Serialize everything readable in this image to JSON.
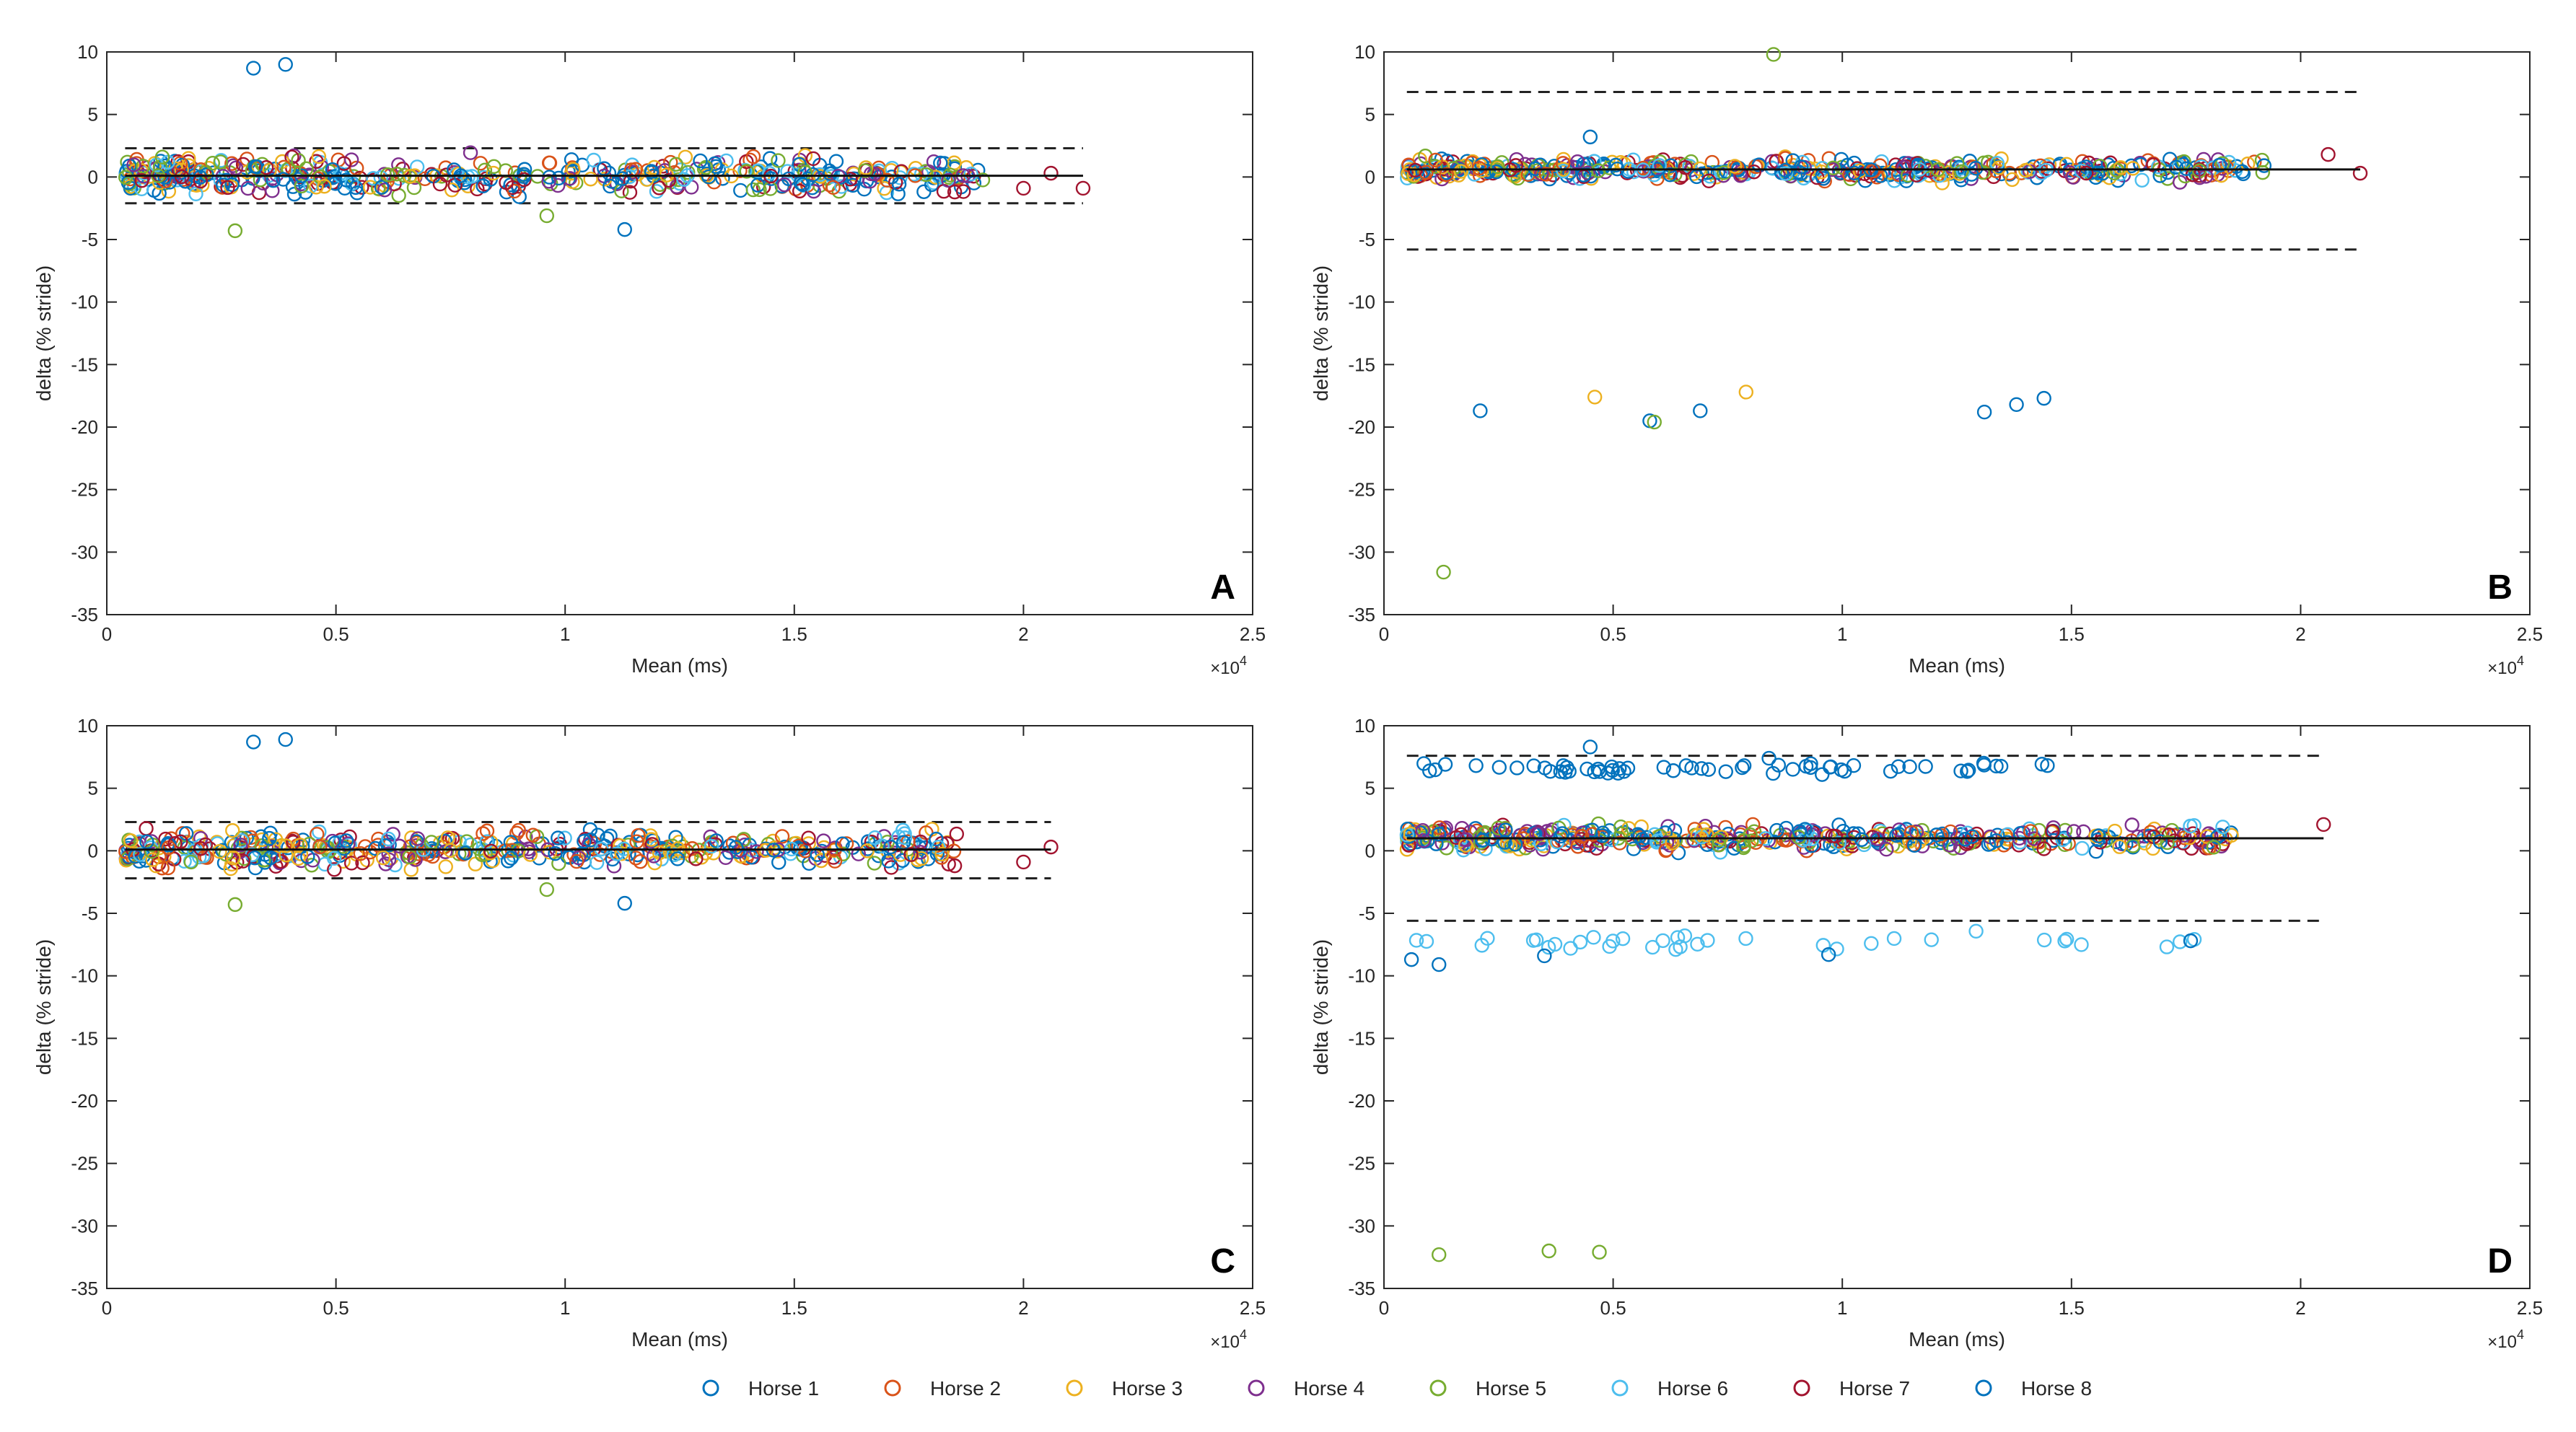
{
  "legend": {
    "items": [
      {
        "label": "Horse 1",
        "color": "#0072BD"
      },
      {
        "label": "Horse 2",
        "color": "#D95319"
      },
      {
        "label": "Horse 3",
        "color": "#EDB120"
      },
      {
        "label": "Horse 4",
        "color": "#7E2F8E"
      },
      {
        "label": "Horse 5",
        "color": "#77AC30"
      },
      {
        "label": "Horse 6",
        "color": "#4DBEEE"
      },
      {
        "label": "Horse 7",
        "color": "#A2142F"
      },
      {
        "label": "Horse 8",
        "color": "#0072BD"
      }
    ]
  },
  "chart_data": [
    {
      "panel": "A",
      "type": "scatter",
      "xlabel": "Mean (ms)",
      "ylabel": "delta (% stride)",
      "x_exponent_label": "×10^4",
      "xlim": [
        0,
        2.5
      ],
      "ylim": [
        -35,
        10
      ],
      "xticks": [
        0,
        0.5,
        1,
        1.5,
        2,
        2.5
      ],
      "xtick_labels": [
        "0",
        "0.5",
        "1",
        "1.5",
        "2",
        "2.5"
      ],
      "yticks": [
        10,
        5,
        0,
        -5,
        -10,
        -15,
        -20,
        -25,
        -30,
        -35
      ],
      "ytick_labels": [
        "10",
        "5",
        "0",
        "-5",
        "-10",
        "-15",
        "-20",
        "-25",
        "-30",
        "-35"
      ],
      "x_range": [
        0.04,
        2.13
      ],
      "mean_line": 0.1,
      "loa_upper": 2.3,
      "loa_lower": -2.1,
      "spread": 2.0,
      "outliers": [
        {
          "series": 0,
          "x": 0.32,
          "y": 8.7
        },
        {
          "series": 0,
          "x": 0.39,
          "y": 9.0
        },
        {
          "series": 4,
          "x": 0.28,
          "y": -4.3
        },
        {
          "series": 0,
          "x": 1.13,
          "y": -4.2
        },
        {
          "series": 4,
          "x": 0.96,
          "y": -3.1
        },
        {
          "series": 6,
          "x": 2.13,
          "y": -0.9
        },
        {
          "series": 6,
          "x": 2.06,
          "y": 0.3
        },
        {
          "series": 6,
          "x": 2.0,
          "y": -0.9
        },
        {
          "series": 6,
          "x": 1.85,
          "y": -1.2
        }
      ]
    },
    {
      "panel": "B",
      "type": "scatter",
      "xlabel": "Mean (ms)",
      "ylabel": "delta (% stride)",
      "x_exponent_label": "×10^4",
      "xlim": [
        0,
        2.5
      ],
      "ylim": [
        -35,
        10
      ],
      "xticks": [
        0,
        0.5,
        1,
        1.5,
        2,
        2.5
      ],
      "xtick_labels": [
        "0",
        "0.5",
        "1",
        "1.5",
        "2",
        "2.5"
      ],
      "yticks": [
        10,
        5,
        0,
        -5,
        -10,
        -15,
        -20,
        -25,
        -30,
        -35
      ],
      "ytick_labels": [
        "10",
        "5",
        "0",
        "-5",
        "-10",
        "-15",
        "-20",
        "-25",
        "-30",
        "-35"
      ],
      "x_range": [
        0.05,
        2.13
      ],
      "mean_line": 0.6,
      "loa_upper": 6.8,
      "loa_lower": -5.8,
      "spread": 1.2,
      "outliers": [
        {
          "series": 4,
          "x": 0.85,
          "y": 9.8
        },
        {
          "series": 0,
          "x": 0.45,
          "y": 3.2
        },
        {
          "series": 0,
          "x": 0.21,
          "y": -18.7
        },
        {
          "series": 2,
          "x": 0.46,
          "y": -17.6
        },
        {
          "series": 0,
          "x": 0.58,
          "y": -19.5
        },
        {
          "series": 4,
          "x": 0.59,
          "y": -19.6
        },
        {
          "series": 0,
          "x": 0.69,
          "y": -18.7
        },
        {
          "series": 2,
          "x": 0.79,
          "y": -17.2
        },
        {
          "series": 0,
          "x": 1.31,
          "y": -18.8
        },
        {
          "series": 0,
          "x": 1.38,
          "y": -18.2
        },
        {
          "series": 0,
          "x": 1.44,
          "y": -17.7
        },
        {
          "series": 4,
          "x": 0.13,
          "y": -31.6
        },
        {
          "series": 6,
          "x": 2.13,
          "y": 0.3
        },
        {
          "series": 6,
          "x": 2.06,
          "y": 1.8
        }
      ]
    },
    {
      "panel": "C",
      "type": "scatter",
      "xlabel": "Mean (ms)",
      "ylabel": "delta (% stride)",
      "x_exponent_label": "×10^4",
      "xlim": [
        0,
        2.5
      ],
      "ylim": [
        -35,
        10
      ],
      "xticks": [
        0,
        0.5,
        1,
        1.5,
        2,
        2.5
      ],
      "xtick_labels": [
        "0",
        "0.5",
        "1",
        "1.5",
        "2",
        "2.5"
      ],
      "yticks": [
        10,
        5,
        0,
        -5,
        -10,
        -15,
        -20,
        -25,
        -30,
        -35
      ],
      "ytick_labels": [
        "10",
        "5",
        "0",
        "-5",
        "-10",
        "-15",
        "-20",
        "-25",
        "-30",
        "-35"
      ],
      "x_range": [
        0.04,
        2.06
      ],
      "mean_line": 0.1,
      "loa_upper": 2.3,
      "loa_lower": -2.2,
      "spread": 2.0,
      "outliers": [
        {
          "series": 0,
          "x": 0.32,
          "y": 8.7
        },
        {
          "series": 0,
          "x": 0.39,
          "y": 8.9
        },
        {
          "series": 4,
          "x": 0.28,
          "y": -4.3
        },
        {
          "series": 0,
          "x": 1.13,
          "y": -4.2
        },
        {
          "series": 4,
          "x": 0.96,
          "y": -3.1
        },
        {
          "series": 6,
          "x": 2.06,
          "y": 0.3
        },
        {
          "series": 6,
          "x": 2.0,
          "y": -0.9
        },
        {
          "series": 6,
          "x": 1.85,
          "y": -1.2
        }
      ]
    },
    {
      "panel": "D",
      "type": "scatter",
      "xlabel": "Mean (ms)",
      "ylabel": "delta (% stride)",
      "x_exponent_label": "×10^4",
      "xlim": [
        0,
        2.5
      ],
      "ylim": [
        -35,
        10
      ],
      "xticks": [
        0,
        0.5,
        1,
        1.5,
        2,
        2.5
      ],
      "xtick_labels": [
        "0",
        "0.5",
        "1",
        "1.5",
        "2",
        "2.5"
      ],
      "yticks": [
        10,
        5,
        0,
        -5,
        -10,
        -15,
        -20,
        -25,
        -30,
        -35
      ],
      "ytick_labels": [
        "10",
        "5",
        "0",
        "-5",
        "-10",
        "-15",
        "-20",
        "-25",
        "-30",
        "-35"
      ],
      "x_range": [
        0.05,
        2.05
      ],
      "mean_line": 1.0,
      "loa_upper": 7.6,
      "loa_lower": -5.6,
      "spread": 1.3,
      "band_upper": {
        "series": 7,
        "y_center": 6.6,
        "spread": 0.7,
        "x_range": [
          0.06,
          1.45
        ]
      },
      "band_lower": {
        "series": 5,
        "y_center": -7.3,
        "spread": 1.0,
        "x_range": [
          0.05,
          1.77
        ]
      },
      "outliers": [
        {
          "series": 4,
          "x": 0.12,
          "y": -32.3
        },
        {
          "series": 4,
          "x": 0.36,
          "y": -32.0
        },
        {
          "series": 4,
          "x": 0.47,
          "y": -32.1
        },
        {
          "series": 0,
          "x": 0.45,
          "y": 8.3
        },
        {
          "series": 7,
          "x": 0.84,
          "y": 7.4
        },
        {
          "series": 6,
          "x": 2.05,
          "y": 2.1
        },
        {
          "series": 5,
          "x": 1.83,
          "y": 1.9
        },
        {
          "series": 0,
          "x": 0.06,
          "y": -8.7
        },
        {
          "series": 0,
          "x": 0.12,
          "y": -9.1
        },
        {
          "series": 0,
          "x": 0.97,
          "y": -8.3
        },
        {
          "series": 0,
          "x": 1.76,
          "y": -7.2
        },
        {
          "series": 0,
          "x": 0.35,
          "y": -8.4
        }
      ]
    }
  ]
}
